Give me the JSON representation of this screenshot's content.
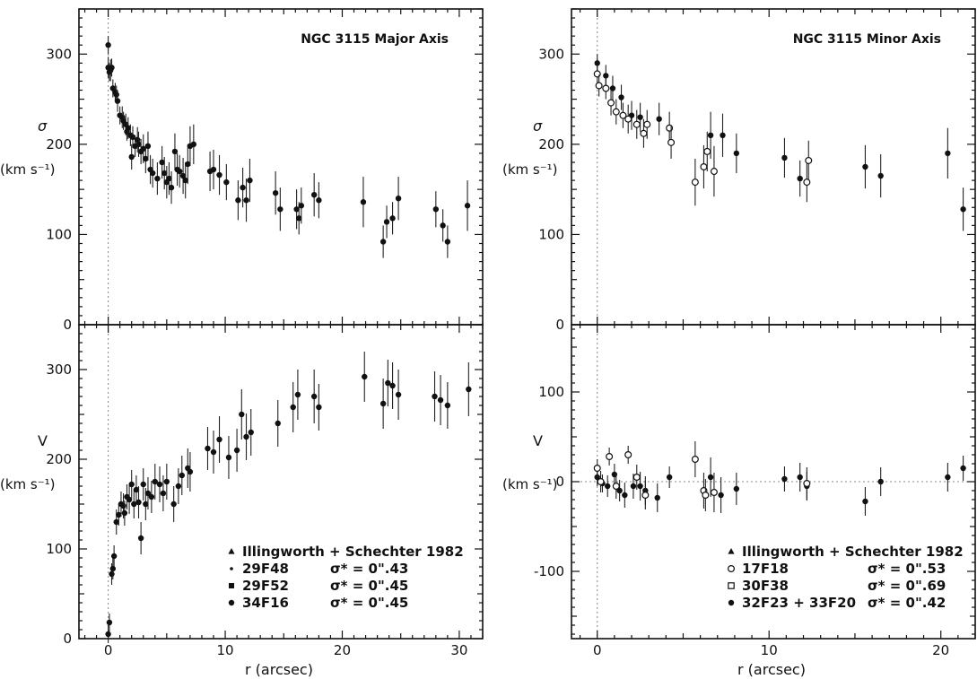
{
  "chart_data": [
    {
      "type": "scatter",
      "panel": "left-top",
      "title": "NGC 3115   Major Axis",
      "ylabel": "σ",
      "yunit": "(km s⁻¹)",
      "xlabel": "",
      "xlim": [
        -2.5,
        32
      ],
      "ylim": [
        0,
        350
      ],
      "yticks": [
        0,
        100,
        200,
        300
      ],
      "xticks": [
        0,
        10,
        20,
        30
      ],
      "grid": false,
      "series": [
        {
          "marker": "filled-circle",
          "points": [
            [
              0.0,
              310,
              10
            ],
            [
              0.0,
              285,
              12
            ],
            [
              0.1,
              280,
              10
            ],
            [
              0.2,
              282,
              12
            ],
            [
              0.3,
              285,
              10
            ],
            [
              0.4,
              262,
              10
            ],
            [
              0.6,
              258,
              10
            ],
            [
              0.7,
              255,
              10
            ],
            [
              0.8,
              248,
              12
            ],
            [
              1.0,
              232,
              10
            ],
            [
              1.2,
              230,
              12
            ],
            [
              1.3,
              226,
              10
            ],
            [
              1.5,
              222,
              12
            ],
            [
              1.6,
              214,
              10
            ],
            [
              1.7,
              218,
              12
            ],
            [
              1.9,
              210,
              12
            ],
            [
              2.0,
              186,
              14
            ],
            [
              2.1,
              208,
              12
            ],
            [
              2.3,
              198,
              12
            ],
            [
              2.5,
              205,
              14
            ],
            [
              2.6,
              200,
              14
            ],
            [
              2.8,
              192,
              14
            ],
            [
              3.0,
              195,
              16
            ],
            [
              3.2,
              184,
              16
            ],
            [
              3.4,
              198,
              16
            ],
            [
              3.6,
              172,
              16
            ],
            [
              3.8,
              168,
              16
            ],
            [
              4.2,
              162,
              18
            ],
            [
              4.6,
              180,
              18
            ],
            [
              4.8,
              168,
              18
            ],
            [
              5.0,
              158,
              18
            ],
            [
              5.2,
              162,
              18
            ],
            [
              5.4,
              152,
              18
            ],
            [
              5.7,
              192,
              20
            ],
            [
              5.9,
              172,
              18
            ],
            [
              6.1,
              170,
              18
            ],
            [
              6.4,
              165,
              20
            ],
            [
              6.6,
              160,
              20
            ],
            [
              6.8,
              178,
              22
            ],
            [
              7.0,
              198,
              22
            ],
            [
              7.3,
              200,
              22
            ],
            [
              8.7,
              170,
              22
            ],
            [
              9.0,
              172,
              22
            ],
            [
              9.5,
              166,
              22
            ],
            [
              10.1,
              158,
              20
            ],
            [
              11.1,
              138,
              22
            ],
            [
              11.5,
              152,
              22
            ],
            [
              11.8,
              138,
              24
            ],
            [
              12.1,
              160,
              24
            ],
            [
              14.3,
              146,
              24
            ],
            [
              14.7,
              128,
              24
            ],
            [
              16.1,
              128,
              22
            ],
            [
              16.3,
              118,
              18
            ],
            [
              16.5,
              132,
              20
            ],
            [
              17.6,
              144,
              24
            ],
            [
              18.0,
              138,
              20
            ],
            [
              21.8,
              136,
              28
            ],
            [
              23.5,
              92,
              18
            ],
            [
              23.8,
              114,
              18
            ],
            [
              24.3,
              118,
              18
            ],
            [
              24.8,
              140,
              24
            ],
            [
              28.0,
              128,
              20
            ],
            [
              28.6,
              110,
              18
            ],
            [
              29.0,
              92,
              18
            ],
            [
              30.7,
              132,
              28
            ]
          ]
        }
      ]
    },
    {
      "type": "scatter",
      "panel": "left-bottom",
      "title": "",
      "ylabel": "V",
      "yunit": "(km s⁻¹)",
      "xlabel": "r    (arcsec)",
      "xlim": [
        -2.5,
        32
      ],
      "ylim": [
        0,
        350
      ],
      "yticks": [
        0,
        100,
        200,
        300
      ],
      "xticks": [
        0,
        10,
        20,
        30
      ],
      "legend_location": "bottom-right",
      "legend": [
        {
          "marker": "triangle",
          "label": "Illingworth + Schechter 1982",
          "sigma": ""
        },
        {
          "marker": "dot",
          "label": "29F48",
          "sigma": "σ* = 0\".43"
        },
        {
          "marker": "square",
          "label": "29F52",
          "sigma": "σ* = 0\".45"
        },
        {
          "marker": "filled-circle",
          "label": "34F16",
          "sigma": "σ* = 0\".45"
        }
      ],
      "series": [
        {
          "marker": "filled-circle",
          "points": [
            [
              0.0,
              5,
              10
            ],
            [
              0.1,
              18,
              10
            ],
            [
              0.3,
              72,
              12
            ],
            [
              0.4,
              78,
              12
            ],
            [
              0.5,
              92,
              12
            ],
            [
              0.7,
              130,
              14
            ],
            [
              0.9,
              138,
              12
            ],
            [
              1.1,
              150,
              14
            ],
            [
              1.3,
              148,
              14
            ],
            [
              1.4,
              140,
              14
            ],
            [
              1.6,
              158,
              14
            ],
            [
              1.8,
              155,
              16
            ],
            [
              2.0,
              172,
              16
            ],
            [
              2.2,
              150,
              16
            ],
            [
              2.4,
              166,
              16
            ],
            [
              2.6,
              152,
              18
            ],
            [
              2.8,
              112,
              18
            ],
            [
              3.0,
              172,
              18
            ],
            [
              3.2,
              150,
              18
            ],
            [
              3.4,
              162,
              18
            ],
            [
              3.7,
              158,
              18
            ],
            [
              4.0,
              175,
              20
            ],
            [
              4.4,
              172,
              20
            ],
            [
              4.7,
              162,
              20
            ],
            [
              5.0,
              175,
              20
            ],
            [
              5.6,
              150,
              20
            ],
            [
              6.0,
              170,
              20
            ],
            [
              6.3,
              182,
              22
            ],
            [
              6.8,
              190,
              22
            ],
            [
              7.0,
              186,
              22
            ],
            [
              8.5,
              212,
              24
            ],
            [
              9.0,
              208,
              24
            ],
            [
              9.5,
              222,
              26
            ],
            [
              10.3,
              202,
              24
            ],
            [
              11.0,
              210,
              24
            ],
            [
              11.4,
              250,
              28
            ],
            [
              11.8,
              225,
              26
            ],
            [
              12.2,
              230,
              26
            ],
            [
              14.5,
              240,
              26
            ],
            [
              15.8,
              258,
              28
            ],
            [
              16.2,
              272,
              28
            ],
            [
              17.6,
              270,
              30
            ],
            [
              18.0,
              258,
              26
            ],
            [
              21.9,
              292,
              28
            ],
            [
              23.5,
              262,
              28
            ],
            [
              23.9,
              285,
              26
            ],
            [
              24.3,
              282,
              26
            ],
            [
              24.8,
              272,
              28
            ],
            [
              27.9,
              270,
              28
            ],
            [
              28.4,
              266,
              28
            ],
            [
              29.0,
              260,
              26
            ],
            [
              30.8,
              278,
              30
            ]
          ]
        }
      ]
    },
    {
      "type": "scatter",
      "panel": "right-top",
      "title": "NGC 3115   Minor Axis",
      "ylabel": "σ",
      "yunit": "(km s⁻¹)",
      "xlabel": "",
      "xlim": [
        -1.5,
        22
      ],
      "ylim": [
        0,
        350
      ],
      "yticks": [
        0,
        100,
        200,
        300
      ],
      "xticks": [
        0,
        10,
        20
      ],
      "series": [
        {
          "name": "32F23 + 33F20",
          "marker": "filled-circle",
          "points": [
            [
              0.0,
              290,
              10
            ],
            [
              0.5,
              276,
              12
            ],
            [
              0.9,
              262,
              14
            ],
            [
              1.4,
              252,
              14
            ],
            [
              2.0,
              232,
              16
            ],
            [
              2.5,
              230,
              16
            ],
            [
              3.6,
              228,
              18
            ],
            [
              6.6,
              210,
              26
            ],
            [
              7.3,
              210,
              24
            ],
            [
              8.1,
              190,
              22
            ],
            [
              10.9,
              185,
              22
            ],
            [
              11.8,
              162,
              20
            ],
            [
              15.6,
              175,
              24
            ],
            [
              16.5,
              165,
              24
            ],
            [
              20.4,
              190,
              28
            ],
            [
              21.3,
              128,
              24
            ]
          ]
        },
        {
          "name": "17F18",
          "marker": "open-circle",
          "points": [
            [
              0.0,
              278,
              10
            ],
            [
              0.1,
              265,
              12
            ],
            [
              0.5,
              262,
              12
            ],
            [
              0.8,
              246,
              14
            ],
            [
              1.1,
              236,
              14
            ],
            [
              1.5,
              232,
              14
            ],
            [
              1.8,
              228,
              16
            ],
            [
              2.3,
              222,
              16
            ],
            [
              2.7,
              212,
              16
            ],
            [
              2.9,
              222,
              16
            ],
            [
              4.2,
              218,
              18
            ],
            [
              4.3,
              202,
              18
            ],
            [
              5.7,
              158,
              26
            ],
            [
              6.2,
              175,
              24
            ],
            [
              6.4,
              192,
              22
            ],
            [
              6.8,
              170,
              28
            ],
            [
              12.2,
              158,
              22
            ],
            [
              12.3,
              182,
              22
            ]
          ]
        }
      ]
    },
    {
      "type": "scatter",
      "panel": "right-bottom",
      "title": "",
      "ylabel": "V",
      "yunit": "(km s⁻¹)",
      "xlabel": "r    (arcsec)",
      "xlim": [
        -1.5,
        22
      ],
      "ylim": [
        -175,
        175
      ],
      "yticks": [
        -100,
        0,
        100
      ],
      "xticks": [
        0,
        10,
        20
      ],
      "legend_location": "bottom-right",
      "legend": [
        {
          "marker": "triangle",
          "label": "Illingworth + Schechter 1982",
          "sigma": ""
        },
        {
          "marker": "open-circle",
          "label": "17F18",
          "sigma": "σ* = 0\".53"
        },
        {
          "marker": "open-square",
          "label": "30F38",
          "sigma": "σ* = 0\".69"
        },
        {
          "marker": "filled-circle",
          "label": "32F23 + 33F20",
          "sigma": "σ* = 0\".42"
        }
      ],
      "series": [
        {
          "name": "32F23 + 33F20",
          "marker": "filled-circle",
          "points": [
            [
              0.0,
              5,
              10
            ],
            [
              0.3,
              -2,
              10
            ],
            [
              0.6,
              -5,
              12
            ],
            [
              1.0,
              8,
              12
            ],
            [
              1.3,
              -10,
              12
            ],
            [
              1.6,
              -15,
              14
            ],
            [
              2.1,
              -5,
              14
            ],
            [
              2.5,
              -5,
              16
            ],
            [
              2.8,
              -10,
              16
            ],
            [
              3.5,
              -18,
              16
            ],
            [
              4.2,
              5,
              12
            ],
            [
              6.6,
              5,
              22
            ],
            [
              7.2,
              -15,
              20
            ],
            [
              8.1,
              -8,
              18
            ],
            [
              10.9,
              3,
              14
            ],
            [
              11.8,
              5,
              16
            ],
            [
              12.2,
              -5,
              16
            ],
            [
              15.6,
              -22,
              16
            ],
            [
              16.5,
              0,
              16
            ],
            [
              20.4,
              5,
              16
            ],
            [
              21.3,
              15,
              14
            ]
          ]
        },
        {
          "name": "17F18",
          "marker": "open-circle",
          "points": [
            [
              0.0,
              15,
              10
            ],
            [
              0.2,
              0,
              12
            ],
            [
              0.7,
              28,
              10
            ],
            [
              1.1,
              -5,
              14
            ],
            [
              1.8,
              30,
              10
            ],
            [
              2.3,
              5,
              14
            ],
            [
              2.8,
              -15,
              16
            ],
            [
              5.7,
              25,
              20
            ],
            [
              6.2,
              -10,
              20
            ],
            [
              6.3,
              -15,
              18
            ],
            [
              6.8,
              -12,
              22
            ],
            [
              12.2,
              -2,
              18
            ]
          ]
        }
      ]
    }
  ]
}
